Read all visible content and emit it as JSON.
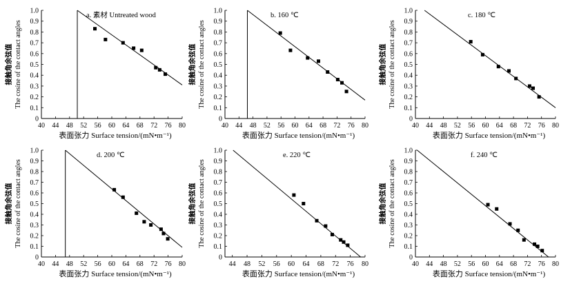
{
  "figure": {
    "description_hidden": false
  },
  "chart_data": [
    {
      "type": "scatter",
      "title": "a. 素材 Untreated wood",
      "xlabel": "表面张力 Surface tension/(mN•m⁻¹)",
      "ylabel_cn": "接触角余弦值",
      "ylabel_en": "The cosine of the contact angles",
      "xlim": [
        40,
        80
      ],
      "ylim": [
        0,
        1.0
      ],
      "xticks": [
        "40",
        "44",
        "48",
        "52",
        "56",
        "60",
        "64",
        "68",
        "72",
        "76",
        "80"
      ],
      "yticks": [
        "0",
        "0.1",
        "0.2",
        "0.3",
        "0.4",
        "0.5",
        "0.6",
        "0.7",
        "0.8",
        "0.9",
        "1.0"
      ],
      "points": [
        [
          55.2,
          0.83
        ],
        [
          58.2,
          0.73
        ],
        [
          63.2,
          0.7
        ],
        [
          66.2,
          0.65
        ],
        [
          68.5,
          0.63
        ],
        [
          72.5,
          0.47
        ],
        [
          73.6,
          0.45
        ],
        [
          75.2,
          0.41
        ]
      ],
      "fit_line": [
        [
          50.2,
          1.0
        ],
        [
          80,
          0.31
        ]
      ],
      "vline": [
        50.2,
        0,
        1.0
      ]
    },
    {
      "type": "scatter",
      "title": "b. 160 ℃",
      "xlabel": "表面张力 Surface tension/(mN•m⁻¹)",
      "ylabel_cn": "接触角余弦值",
      "ylabel_en": "The cosine of the contact angles",
      "xlim": [
        40,
        80
      ],
      "ylim": [
        0,
        1.0
      ],
      "xticks": [
        "40",
        "44",
        "48",
        "52",
        "56",
        "60",
        "64",
        "68",
        "72",
        "76",
        "80"
      ],
      "yticks": [
        "0",
        "0.1",
        "0.2",
        "0.3",
        "0.4",
        "0.5",
        "0.6",
        "0.7",
        "0.8",
        "0.9",
        "1.0"
      ],
      "points": [
        [
          55.8,
          0.79
        ],
        [
          58.7,
          0.63
        ],
        [
          63.6,
          0.56
        ],
        [
          66.7,
          0.53
        ],
        [
          69.3,
          0.43
        ],
        [
          72.2,
          0.36
        ],
        [
          73.4,
          0.33
        ],
        [
          74.7,
          0.25
        ]
      ],
      "fit_line": [
        [
          46.4,
          1.0
        ],
        [
          80,
          0.17
        ]
      ],
      "vline": [
        46.4,
        0,
        1.0
      ]
    },
    {
      "type": "scatter",
      "title": "c. 180 ℃",
      "xlabel": "表面张力 Surface tension/(mN•m⁻¹)",
      "ylabel_cn": "接触角余弦值",
      "ylabel_en": "The cosine of the contact angles",
      "xlim": [
        40,
        80
      ],
      "ylim": [
        0,
        1.0
      ],
      "xticks": [
        "40",
        "44",
        "48",
        "52",
        "56",
        "60",
        "64",
        "68",
        "72",
        "76",
        "80"
      ],
      "yticks": [
        "0",
        "0.1",
        "0.2",
        "0.3",
        "0.4",
        "0.5",
        "0.6",
        "0.7",
        "0.8",
        "0.9",
        "1.0"
      ],
      "points": [
        [
          55.8,
          0.71
        ],
        [
          59.2,
          0.59
        ],
        [
          63.7,
          0.48
        ],
        [
          66.7,
          0.44
        ],
        [
          68.7,
          0.37
        ],
        [
          72.6,
          0.3
        ],
        [
          73.6,
          0.28
        ],
        [
          75.3,
          0.2
        ]
      ],
      "fit_line": [
        [
          42.6,
          1.0
        ],
        [
          80,
          0.1
        ]
      ],
      "vline": null
    },
    {
      "type": "scatter",
      "title": "d. 200 ℃",
      "xlabel": "表面张力 Surface tension/(mN•m⁻¹)",
      "ylabel_cn": "接触角余弦值",
      "ylabel_en": "The cosine of the contact angles",
      "xlim": [
        40,
        80
      ],
      "ylim": [
        0,
        1.0
      ],
      "xticks": [
        "40",
        "44",
        "48",
        "52",
        "56",
        "60",
        "64",
        "68",
        "72",
        "76",
        "80"
      ],
      "yticks": [
        "0",
        "0.1",
        "0.2",
        "0.3",
        "0.4",
        "0.5",
        "0.6",
        "0.7",
        "0.8",
        "0.9",
        "1.0"
      ],
      "points": [
        [
          60.7,
          0.63
        ],
        [
          63.2,
          0.56
        ],
        [
          67.0,
          0.41
        ],
        [
          69.2,
          0.33
        ],
        [
          71.1,
          0.3
        ],
        [
          74.0,
          0.26
        ],
        [
          74.7,
          0.22
        ],
        [
          75.9,
          0.17
        ]
      ],
      "fit_line": [
        [
          46.8,
          1.0
        ],
        [
          80,
          0.09
        ]
      ],
      "vline": [
        46.8,
        0,
        1.0
      ]
    },
    {
      "type": "scatter",
      "title": "e. 220 ℃",
      "xlabel": "表面张力 Surface tension/(mN•m⁻¹)",
      "ylabel_cn": "接触角余弦值",
      "ylabel_en": "The cosine of the contact angles",
      "xlim": [
        42,
        80
      ],
      "ylim": [
        0,
        1.0
      ],
      "xticks": [
        "44",
        "48",
        "52",
        "56",
        "60",
        "64",
        "68",
        "72",
        "76",
        "80"
      ],
      "yticks": [
        "0",
        "0.1",
        "0.2",
        "0.3",
        "0.4",
        "0.5",
        "0.6",
        "0.7",
        "0.8",
        "0.9",
        "1.0"
      ],
      "points": [
        [
          60.7,
          0.58
        ],
        [
          63.3,
          0.5
        ],
        [
          66.9,
          0.34
        ],
        [
          69.3,
          0.29
        ],
        [
          71.1,
          0.21
        ],
        [
          73.4,
          0.16
        ],
        [
          74.2,
          0.14
        ],
        [
          75.3,
          0.11
        ]
      ],
      "fit_line": [
        [
          44.2,
          1.0
        ],
        [
          78.8,
          0
        ]
      ],
      "vline": null
    },
    {
      "type": "scatter",
      "title": "f. 240 ℃",
      "xlabel": "表面张力 Surface tension/(mN•m⁻¹)",
      "ylabel_cn": "接触角余弦值",
      "ylabel_en": "The cosine of the contact angles",
      "xlim": [
        40,
        80
      ],
      "ylim": [
        0,
        1.0
      ],
      "xticks": [
        "40",
        "44",
        "48",
        "52",
        "56",
        "60",
        "64",
        "68",
        "72",
        "76",
        "80"
      ],
      "yticks": [
        "0",
        "0.1",
        "0.2",
        "0.3",
        "0.4",
        "0.5",
        "0.6",
        "0.7",
        "0.8",
        "0.9",
        "1.0"
      ],
      "points": [
        [
          60.7,
          0.49
        ],
        [
          63.2,
          0.45
        ],
        [
          67.0,
          0.31
        ],
        [
          69.3,
          0.25
        ],
        [
          71.0,
          0.16
        ],
        [
          74.0,
          0.12
        ],
        [
          74.9,
          0.1
        ],
        [
          76.2,
          0.06
        ]
      ],
      "fit_line": [
        [
          40.5,
          1.0
        ],
        [
          78.0,
          0
        ]
      ],
      "vline": null
    }
  ]
}
